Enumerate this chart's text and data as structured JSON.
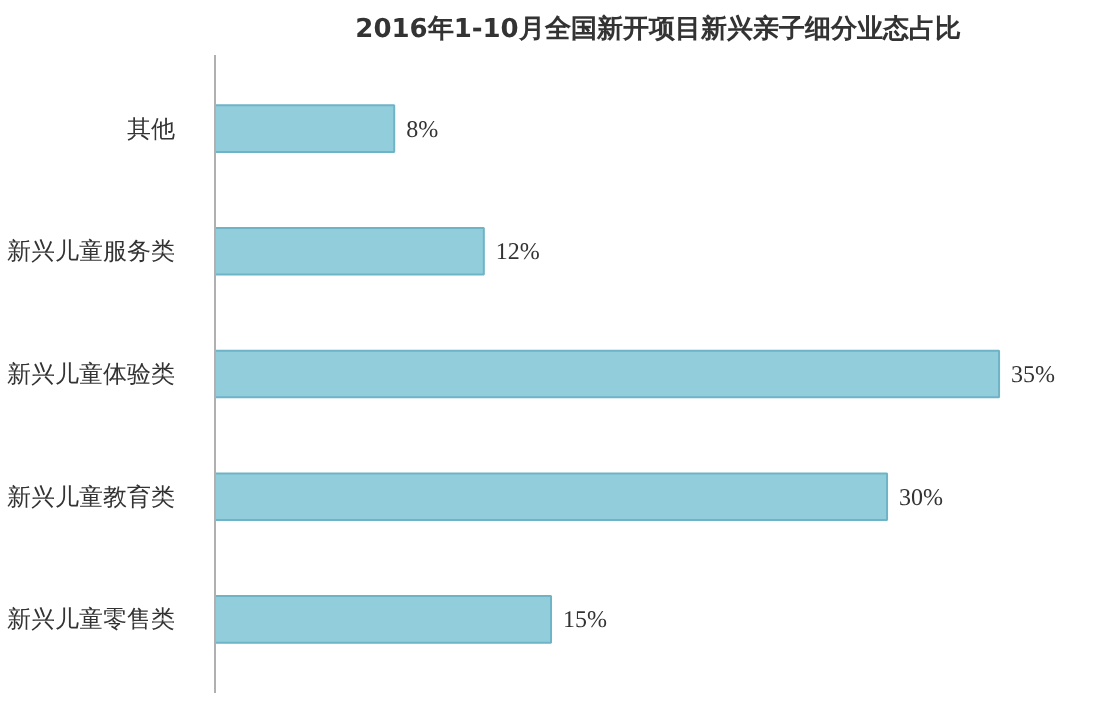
{
  "chart_data": {
    "type": "bar",
    "orientation": "horizontal",
    "title": "2016年1-10月全国新开项目新兴亲子细分业态占比",
    "categories": [
      "其他",
      "新兴儿童服务类",
      "新兴儿童体验类",
      "新兴儿童教育类",
      "新兴儿童零售类"
    ],
    "values": [
      8,
      12,
      35,
      30,
      15
    ],
    "value_labels": [
      "8%",
      "12%",
      "35%",
      "30%",
      "15%"
    ],
    "color": "#92cddc",
    "grid": false
  }
}
